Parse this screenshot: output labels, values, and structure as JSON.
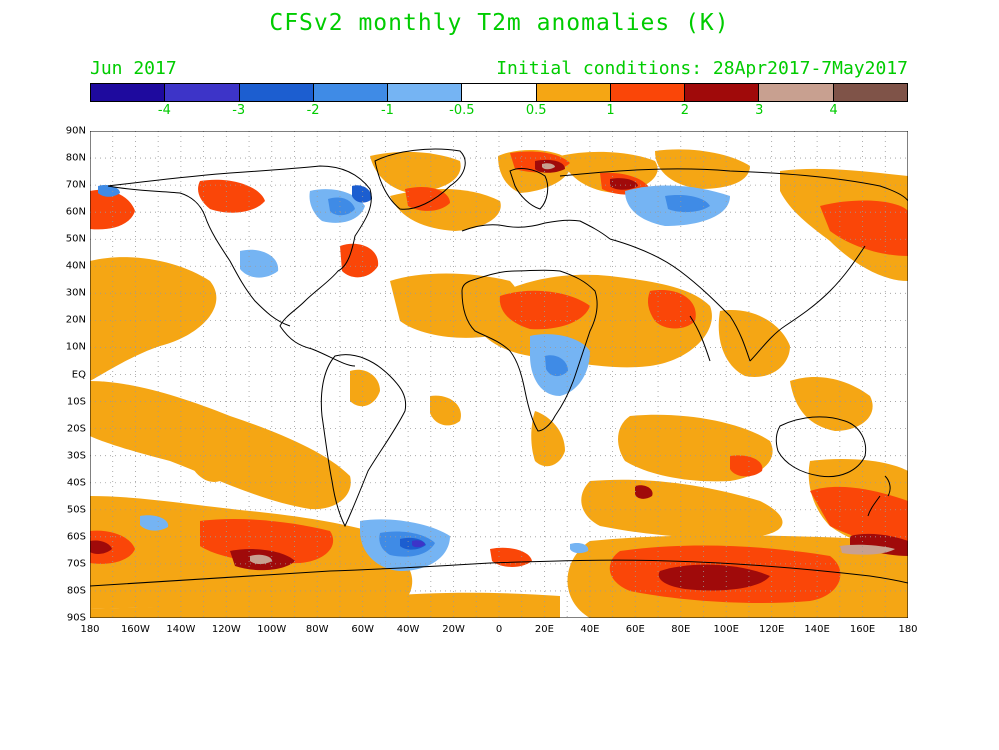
{
  "title": "CFSv2 monthly T2m anomalies (K)",
  "subtitle_left": "Jun 2017",
  "subtitle_right": "Initial conditions: 28Apr2017-7May2017",
  "colorbar": {
    "colors": [
      "#1e0a9e",
      "#3d34c8",
      "#1c5ed0",
      "#3f8be6",
      "#75b4f3",
      "#ffffff",
      "#f5a614",
      "#fa4608",
      "#a00a0a",
      "#c8a090",
      "#7f5348"
    ],
    "tick_labels": [
      "-4",
      "-3",
      "-2",
      "-1",
      "-0.5",
      "0.5",
      "1",
      "2",
      "3",
      "4"
    ]
  },
  "lat_labels": [
    "90N",
    "80N",
    "70N",
    "60N",
    "50N",
    "40N",
    "30N",
    "20N",
    "10N",
    "EQ",
    "10S",
    "20S",
    "30S",
    "40S",
    "50S",
    "60S",
    "70S",
    "80S",
    "90S"
  ],
  "lon_labels": [
    "180",
    "160W",
    "140W",
    "120W",
    "100W",
    "80W",
    "60W",
    "40W",
    "20W",
    "0",
    "20E",
    "40E",
    "60E",
    "80E",
    "100E",
    "120E",
    "140E",
    "160E",
    "180"
  ],
  "colors": {
    "title": "#00cc00",
    "orange": "#f5a614",
    "red": "#fa4608",
    "darkred": "#a00a0a",
    "pink": "#c8a090",
    "lightblue": "#75b4f3",
    "blue": "#3f8be6",
    "midblue": "#1c5ed0",
    "violet": "#3d34c8"
  }
}
